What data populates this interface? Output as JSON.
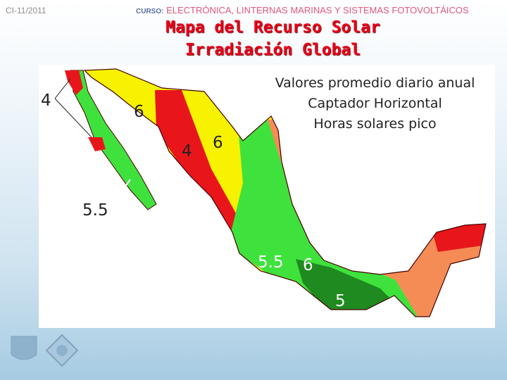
{
  "header": {
    "code": "CI-11/2011",
    "course_label": "CURSO:",
    "course_title": "ELECTRÓNICA, LINTERNAS MARINAS Y SISTEMAS FOTOVOLTÁICOS"
  },
  "title": {
    "line1": "Mapa del Recurso Solar",
    "line2": "Irradiación Global"
  },
  "map": {
    "legend": [
      "Valores promedio diario anual",
      "Captador Horizontal",
      "Horas solares pico"
    ],
    "labels": [
      "4",
      "6",
      "4",
      "6",
      "5.5",
      "4.5",
      "5.5",
      "6",
      "5"
    ],
    "colors": {
      "red": "#e8161b",
      "yellow": "#f7f200",
      "light_green": "#3fe23c",
      "dark_green": "#1f8a1f",
      "orange": "#f58c55"
    }
  },
  "footer": {
    "logos": [
      "unam-shield-logo",
      "institute-logo"
    ]
  }
}
